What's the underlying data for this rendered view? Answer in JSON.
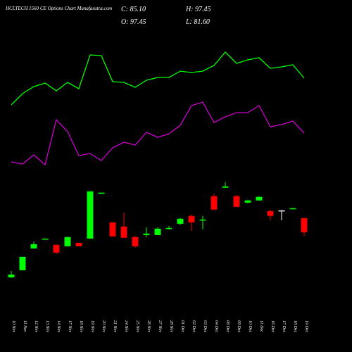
{
  "chart_data": {
    "type": "candlestick",
    "title": "HCLTECH 1560  CE Options  Chart Munafasutra.com",
    "annotations": [
      "C: 85.10",
      "O: 97.45",
      "H: 97.45",
      "L: 81.60"
    ],
    "categories": [
      "10 Nov",
      "11 Nov",
      "12 Nov",
      "13 Nov",
      "14 Nov",
      "17 Nov",
      "18 Nov",
      "19 Nov",
      "20 Nov",
      "21 Nov",
      "24 Nov",
      "25 Nov",
      "26 Nov",
      "27 Nov",
      "28 Nov",
      "01 Dec",
      "02 Dec",
      "03 Dec",
      "04 Dec",
      "08 Dec",
      "09 Dec",
      "10 Dec",
      "11 Dec",
      "16 Dec",
      "17 Dec",
      "18 Dec",
      "19 Dec"
    ],
    "open": [
      45.6,
      51.8,
      70.9,
      78.9,
      74.0,
      72.8,
      75.8,
      79.5,
      119.1,
      93.7,
      90.0,
      80.8,
      82.6,
      82.6,
      88.2,
      92.5,
      99.3,
      95.6,
      116.6,
      124.0,
      116.6,
      111.0,
      112.9,
      103.6,
      104.2,
      105.5,
      97.45
    ],
    "high": [
      51.1,
      63.5,
      77.1,
      79.5,
      74.6,
      81.4,
      75.8,
      120.9,
      119.7,
      93.7,
      102.4,
      82.0,
      89.4,
      89.4,
      90.7,
      97.5,
      100.5,
      99.3,
      119.1,
      128.9,
      117.8,
      113.5,
      116.6,
      104.9,
      104.2,
      106.1,
      97.45
    ],
    "low": [
      45.0,
      51.8,
      70.9,
      78.9,
      66.0,
      72.8,
      72.8,
      79.5,
      119.1,
      81.4,
      80.2,
      71.5,
      80.8,
      82.6,
      87.6,
      91.3,
      86.3,
      87.6,
      104.9,
      124.0,
      107.3,
      110.4,
      112.9,
      95.6,
      95.6,
      105.5,
      81.6
    ],
    "close": [
      48.0,
      63.5,
      74.6,
      79.5,
      67.2,
      80.8,
      72.8,
      120.9,
      119.7,
      81.4,
      80.2,
      72.8,
      83.9,
      88.2,
      88.8,
      96.8,
      93.7,
      96.2,
      104.9,
      125.2,
      107.3,
      112.9,
      116.0,
      99.3,
      104.2,
      106.1,
      85.1
    ],
    "ylim": [
      40,
      130
    ],
    "up_color": "#00ff00",
    "down_color": "#ff0000",
    "flat_color": "#ffffff",
    "series": [
      {
        "color": "#00ff00",
        "values": [
          11,
          27,
          37,
          42,
          31,
          43,
          34,
          82,
          81,
          44,
          43,
          36,
          46,
          50,
          50,
          59,
          57,
          59,
          67,
          86,
          70,
          75,
          78,
          63,
          65,
          68,
          49
        ],
        "ylim": [
          0,
          100
        ]
      },
      {
        "color": "#cc00cc",
        "values": [
          10,
          7,
          20,
          6,
          70,
          53,
          19,
          22,
          12,
          30,
          38,
          34,
          52,
          45,
          50,
          62,
          90,
          95,
          66,
          74,
          80,
          80,
          90,
          60,
          63,
          68,
          51
        ],
        "ylim": [
          0,
          100
        ]
      }
    ]
  }
}
